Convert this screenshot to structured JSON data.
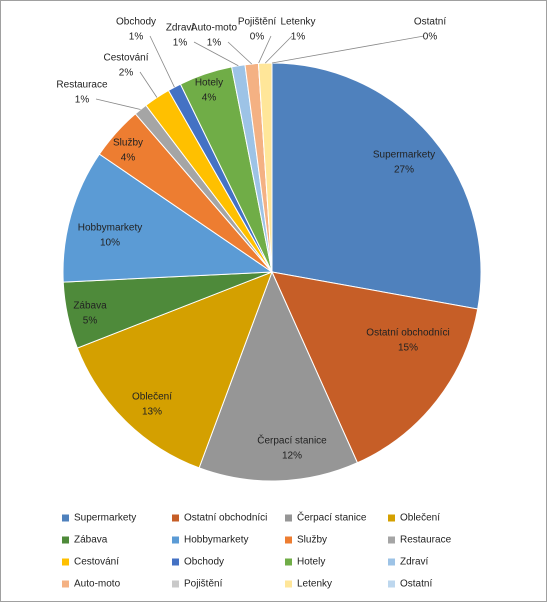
{
  "chart_data": {
    "type": "pie",
    "categories": [
      "Supermarkety",
      "Ostatní obchodníci",
      "Čerpací stanice",
      "Oblečení",
      "Zábava",
      "Hobbymarkety",
      "Služby",
      "Restaurace",
      "Cestování",
      "Obchody",
      "Hotely",
      "Zdraví",
      "Auto-moto",
      "Pojištění",
      "Letenky",
      "Ostatní"
    ],
    "values": [
      27,
      15,
      12,
      13,
      5,
      10,
      4,
      1,
      2,
      1,
      4,
      1,
      1,
      0,
      1,
      0
    ],
    "value_labels": [
      "27%",
      "15%",
      "12%",
      "13%",
      "5%",
      "10%",
      "4%",
      "1%",
      "2%",
      "1%",
      "4%",
      "1%",
      "1%",
      "0%",
      "1%",
      "0%"
    ],
    "colors": [
      "#4f81bd",
      "#c65e27",
      "#969696",
      "#d4a000",
      "#4e8a3a",
      "#5b9bd5",
      "#ed7d31",
      "#a5a5a5",
      "#ffc000",
      "#4472c4",
      "#70ad47",
      "#9dc3e6",
      "#f4b183",
      "#c9c9c9",
      "#ffe699",
      "#bdd7ee"
    ],
    "legend": "bottom"
  }
}
